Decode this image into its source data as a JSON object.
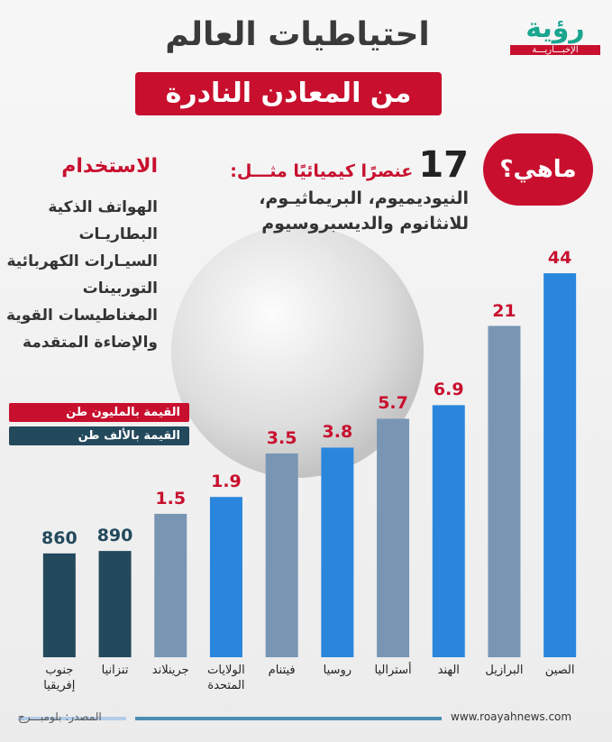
{
  "logo": {
    "name": "رؤية",
    "tagline": "الإخبـــاريـــة"
  },
  "title": "احتياطيات العالم",
  "subtitle": "من المعادن النادرة",
  "intro": {
    "question": "ماهي؟",
    "count": 17,
    "count_text": "عنصرًا كيميائيًا مثـــل:",
    "lines": [
      "النيوديميوم، البريماثيـوم،",
      "للانثانوم والديسبروسيوم"
    ]
  },
  "usage": {
    "heading": "الاستخدام",
    "items": [
      "الهواتف الذكية",
      "البطاريـات",
      "السيـارات الكهربائية",
      "التوربينات",
      "المغناطيسات القوية",
      "والإضاءة المتقدمة"
    ]
  },
  "chart_data": {
    "type": "bar",
    "categories": [
      "جنوب\nإفريقيا",
      "تنزانيا",
      "جرينلاند",
      "الولايات\nالمتحدة",
      "فيتنام",
      "روسيا",
      "أستراليا",
      "الهند",
      "البرازيل",
      "الصين"
    ],
    "series": [
      {
        "name": "القيمة بالمليون طن",
        "color": "#c8102e",
        "axis": "y",
        "values": [
          null,
          null,
          1.5,
          1.9,
          3.5,
          3.8,
          5.7,
          6.9,
          21,
          44
        ],
        "bar_colors": [
          null,
          null,
          "#7896b4",
          "#2a86dc",
          "#7896b4",
          "#2a86dc",
          "#7896b4",
          "#2a86dc",
          "#7896b4",
          "#2a86dc"
        ]
      },
      {
        "name": "القيمة بالألف طن",
        "color": "#23495c",
        "axis": "y2",
        "values": [
          860,
          890,
          null,
          null,
          null,
          null,
          null,
          null,
          null,
          null
        ],
        "bar_colors": [
          "#23495c",
          "#23495c",
          null,
          null,
          null,
          null,
          null,
          null,
          null,
          null
        ]
      }
    ],
    "log_scale": true,
    "ylim": [
      0.2,
      50
    ],
    "y2lim": [
      200,
      50000
    ]
  },
  "footer": {
    "source": "المصدر: بلومبـــرج",
    "site": "www.roayahnews.com"
  }
}
